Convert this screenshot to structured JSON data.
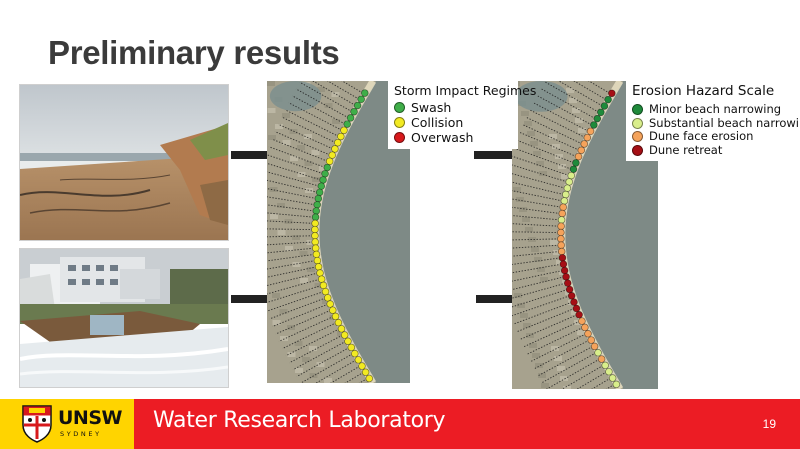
{
  "slide": {
    "title": "Preliminary results",
    "page_number": "19"
  },
  "storm_legend": {
    "title": "Storm Impact Regimes",
    "items": [
      {
        "label": "Swash",
        "color": "#3fae49"
      },
      {
        "label": "Collision",
        "color": "#f2ea22"
      },
      {
        "label": "Overwash",
        "color": "#d7191c"
      }
    ]
  },
  "erosion_legend": {
    "title": "Erosion Hazard Scale",
    "items": [
      {
        "label": "Minor beach narrowing",
        "color": "#1f8a3b"
      },
      {
        "label": "Substantial beach narrowing",
        "color": "#d9ee8b"
      },
      {
        "label": "Dune face erosion",
        "color": "#f5a35b"
      },
      {
        "label": "Dune retreat",
        "color": "#a50f15"
      }
    ]
  },
  "storm_map": {
    "points": [
      "green",
      "green",
      "green",
      "green",
      "green",
      "green",
      "yellow",
      "yellow",
      "yellow",
      "yellow",
      "yellow",
      "yellow",
      "green",
      "green",
      "green",
      "green",
      "green",
      "green",
      "green",
      "green",
      "green",
      "yellow",
      "yellow",
      "yellow",
      "yellow",
      "yellow",
      "yellow",
      "yellow",
      "yellow",
      "yellow",
      "yellow",
      "yellow",
      "yellow",
      "yellow",
      "yellow",
      "yellow",
      "yellow",
      "yellow",
      "yellow",
      "yellow",
      "yellow",
      "yellow",
      "yellow",
      "yellow",
      "yellow",
      "yellow",
      "yellow"
    ]
  },
  "erosion_map": {
    "points": [
      "darkred",
      "green",
      "green",
      "green",
      "green",
      "green",
      "orange",
      "orange",
      "orange",
      "orange",
      "orange",
      "green",
      "green",
      "lightgreen",
      "lightgreen",
      "lightgreen",
      "lightgreen",
      "lightgreen",
      "orange",
      "orange",
      "lightgreen",
      "orange",
      "orange",
      "orange",
      "orange",
      "orange",
      "darkred",
      "darkred",
      "darkred",
      "darkred",
      "darkred",
      "darkred",
      "darkred",
      "darkred",
      "darkred",
      "darkred",
      "orange",
      "orange",
      "orange",
      "orange",
      "orange",
      "lightgreen",
      "orange",
      "lightgreen",
      "lightgreen",
      "lightgreen",
      "lightgreen"
    ]
  },
  "footer": {
    "logo_word": "UNSW",
    "logo_subword": "SYDNEY",
    "lab_name": "Water Research Laboratory",
    "brand_red": "#ec1c24",
    "brand_yellow": "#ffd400"
  }
}
